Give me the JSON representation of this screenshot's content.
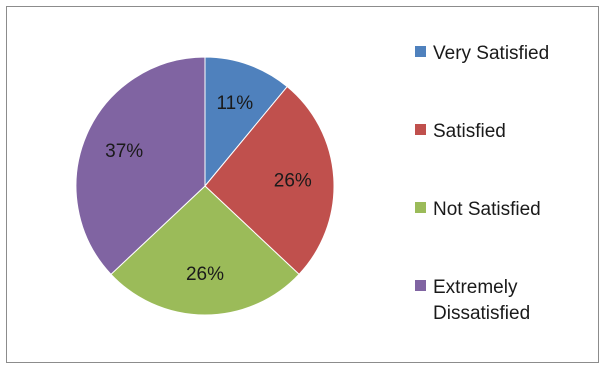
{
  "chart_data": {
    "type": "pie",
    "title": "",
    "legend_position": "right",
    "slices": [
      {
        "label": "Very Satisfied",
        "value": 11,
        "display": "11%",
        "color": "#4f81bd"
      },
      {
        "label": "Satisfied",
        "value": 26,
        "display": "26%",
        "color": "#c0504d"
      },
      {
        "label": "Not Satisfied",
        "value": 26,
        "display": "26%",
        "color": "#9bbb59"
      },
      {
        "label": "Extremely Dissatisfied",
        "value": 37,
        "display": "37%",
        "color": "#8064a2"
      }
    ],
    "legend_lines": [
      [
        "Very Satisfied"
      ],
      [
        "Satisfied"
      ],
      [
        "Not Satisfied"
      ],
      [
        "Extremely",
        "Dissatisfied"
      ]
    ]
  }
}
